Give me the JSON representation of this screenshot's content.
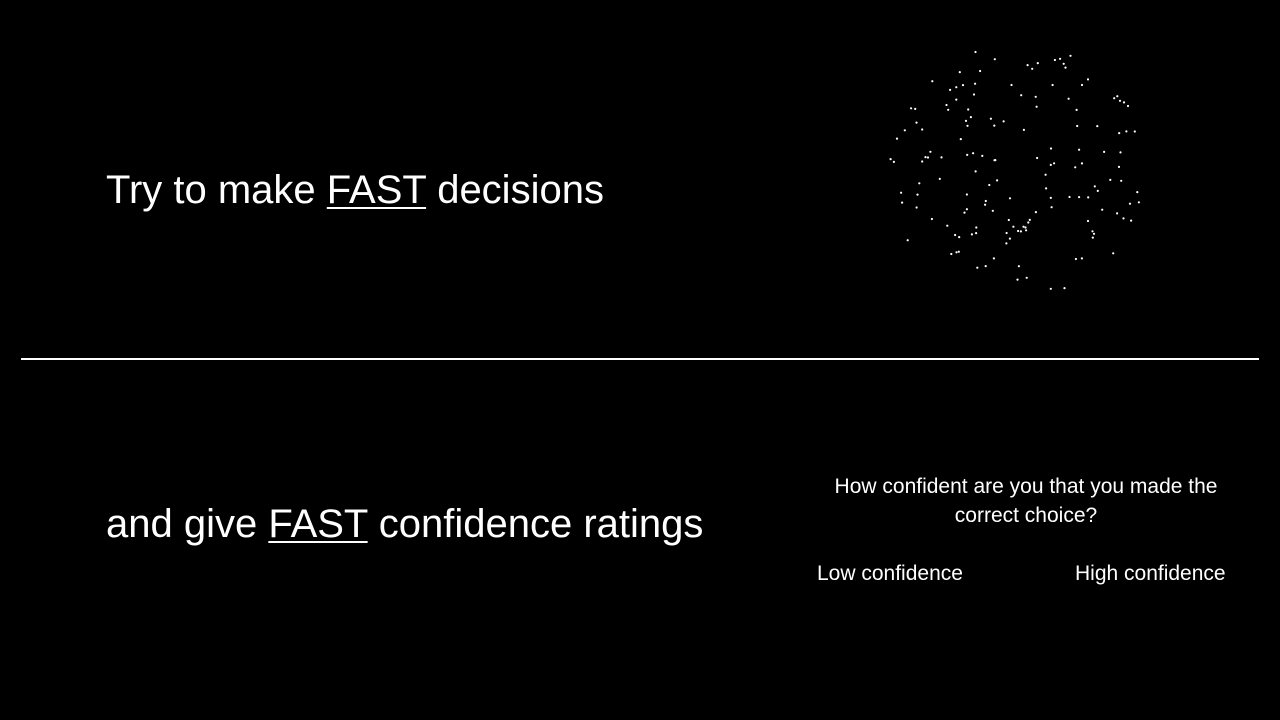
{
  "instructions": {
    "decisions": {
      "before": "Try to make ",
      "emphasis": "FAST",
      "after": " decisions"
    },
    "confidence": {
      "before": "and give ",
      "emphasis": "FAST",
      "after": " confidence ratings"
    }
  },
  "confidence_prompt": {
    "question": "How confident are you that you made the correct choice?",
    "low_label": "Low confidence",
    "high_label": "High confidence"
  },
  "colors": {
    "background": "#000000",
    "foreground": "#ffffff"
  }
}
